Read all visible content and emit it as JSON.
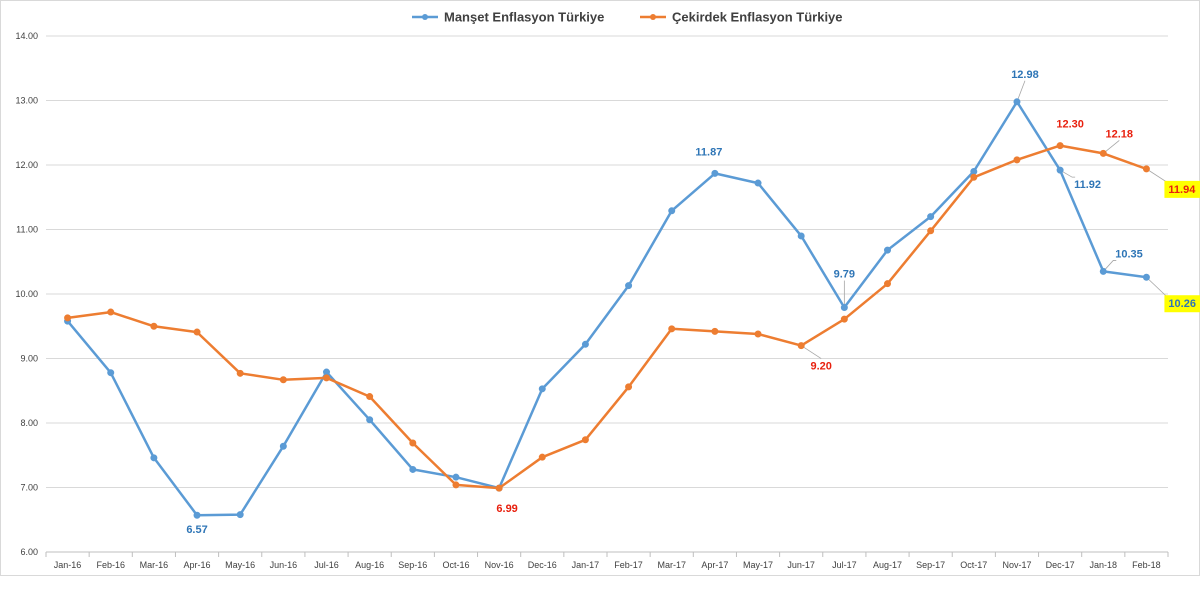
{
  "chart_data": {
    "type": "line",
    "categories": [
      "Jan-16",
      "Feb-16",
      "Mar-16",
      "Apr-16",
      "May-16",
      "Jun-16",
      "Jul-16",
      "Aug-16",
      "Sep-16",
      "Oct-16",
      "Nov-16",
      "Dec-16",
      "Jan-17",
      "Feb-17",
      "Mar-17",
      "Apr-17",
      "May-17",
      "Jun-17",
      "Jul-17",
      "Aug-17",
      "Sep-17",
      "Oct-17",
      "Nov-17",
      "Dec-17",
      "Jan-18",
      "Feb-18"
    ],
    "ylim": [
      6.0,
      14.0
    ],
    "yticks": [
      "6.00",
      "7.00",
      "8.00",
      "9.00",
      "10.00",
      "11.00",
      "12.00",
      "13.00",
      "14.00"
    ],
    "grid": true,
    "legend_position": "top-center",
    "series": [
      {
        "name": "Manşet Enflasyon Türkiye",
        "color": "#5B9BD5",
        "values": [
          9.58,
          8.78,
          7.46,
          6.57,
          6.58,
          7.64,
          8.79,
          8.05,
          7.28,
          7.16,
          6.99,
          8.53,
          9.22,
          10.13,
          11.29,
          11.87,
          11.72,
          10.9,
          9.79,
          10.68,
          11.2,
          11.9,
          12.98,
          11.92,
          10.35,
          10.26
        ],
        "labels": [
          {
            "index": 3,
            "text": "6.57",
            "color": "#2E75B6"
          },
          {
            "index": 15,
            "text": "11.87",
            "color": "#2E75B6"
          },
          {
            "index": 18,
            "text": "9.79",
            "color": "#2E75B6"
          },
          {
            "index": 22,
            "text": "12.98",
            "color": "#2E75B6"
          },
          {
            "index": 23,
            "text": "11.92",
            "color": "#2E75B6"
          },
          {
            "index": 24,
            "text": "10.35",
            "color": "#2E75B6"
          },
          {
            "index": 25,
            "text": "10.26",
            "color": "#2E75B6",
            "highlight": "#FFFF00"
          }
        ]
      },
      {
        "name": "Çekirdek Enflasyon Türkiye",
        "color": "#ED7D31",
        "values": [
          9.63,
          9.72,
          9.5,
          9.41,
          8.77,
          8.67,
          8.7,
          8.41,
          7.69,
          7.04,
          6.99,
          7.47,
          7.74,
          8.56,
          9.46,
          9.42,
          9.38,
          9.2,
          9.61,
          10.16,
          10.98,
          11.81,
          12.08,
          12.3,
          12.18,
          11.94
        ],
        "labels": [
          {
            "index": 10,
            "text": "6.99",
            "color": "#E8200E"
          },
          {
            "index": 17,
            "text": "9.20",
            "color": "#E8200E"
          },
          {
            "index": 23,
            "text": "12.30",
            "color": "#E8200E"
          },
          {
            "index": 24,
            "text": "12.18",
            "color": "#E8200E"
          },
          {
            "index": 25,
            "text": "11.94",
            "color": "#E8200E",
            "highlight": "#FFFF00"
          }
        ]
      }
    ]
  }
}
